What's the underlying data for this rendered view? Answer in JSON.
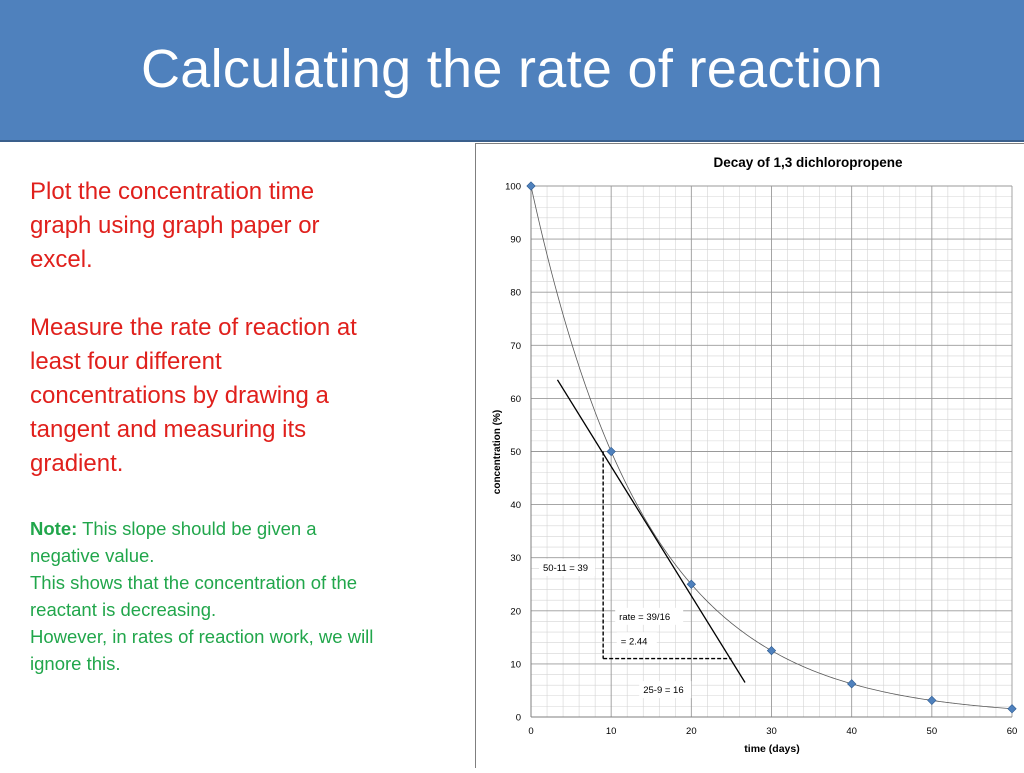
{
  "slide": {
    "title": "Calculating the rate of reaction",
    "instructions": [
      "Plot the concentration time graph using graph paper or excel.",
      "Measure the rate of reaction at least four different concentrations by drawing a tangent and measuring its gradient."
    ],
    "note": {
      "label": "Note:",
      "line1": " This slope should be given a negative value.",
      "line2": "This shows that the concentration of the reactant is decreasing.",
      "line3": "However, in rates of reaction work, we will ignore this."
    },
    "colors": {
      "title_bg": "#4f81bd",
      "red_text": "#e0201c",
      "green_text": "#21a64b",
      "marker": "#4f81bd"
    }
  },
  "chart_data": {
    "type": "scatter",
    "title": "Decay of 1,3 dichloropropene",
    "xlabel": "time (days)",
    "ylabel": "concentration  (%)",
    "xlim": [
      0,
      60
    ],
    "ylim": [
      0,
      100
    ],
    "x_ticks": [
      "0",
      "10",
      "20",
      "30",
      "40",
      "50",
      "60"
    ],
    "y_ticks": [
      "0",
      "10",
      "20",
      "30",
      "40",
      "50",
      "60",
      "70",
      "80",
      "90",
      "100"
    ],
    "grid": true,
    "series": [
      {
        "x": [
          0,
          10,
          20,
          30,
          40,
          50,
          60
        ],
        "y": [
          100,
          50,
          25,
          12.5,
          6.25,
          3.125,
          1.5625
        ]
      }
    ],
    "trend_curve": "exponential decay, half-life 10 days",
    "tangent": {
      "x": [
        3.3,
        26.7
      ],
      "y": [
        63.5,
        6.5
      ]
    },
    "gradient_triangle": {
      "x_start": 9,
      "x_end": 25,
      "y_top": 50,
      "y_bottom": 11
    },
    "annotations": {
      "vertical": "50-11 = 39",
      "rate_line1": "rate = 39/16",
      "rate_line2": "= 2.44",
      "horizontal": "25-9 = 16"
    }
  }
}
